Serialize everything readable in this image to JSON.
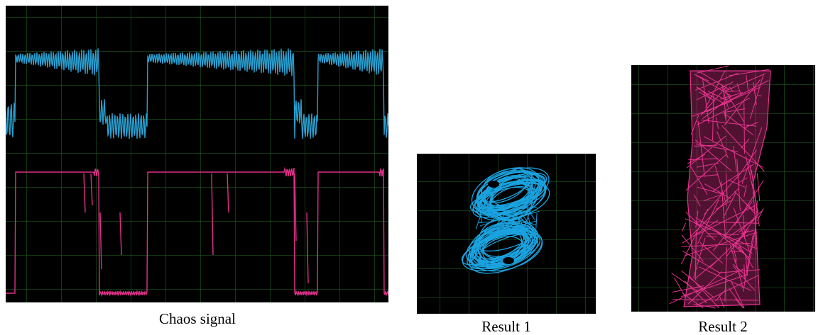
{
  "panels": [
    {
      "caption": "Chaos signal"
    },
    {
      "caption": "Result 1"
    },
    {
      "caption": "Result 2"
    }
  ]
}
